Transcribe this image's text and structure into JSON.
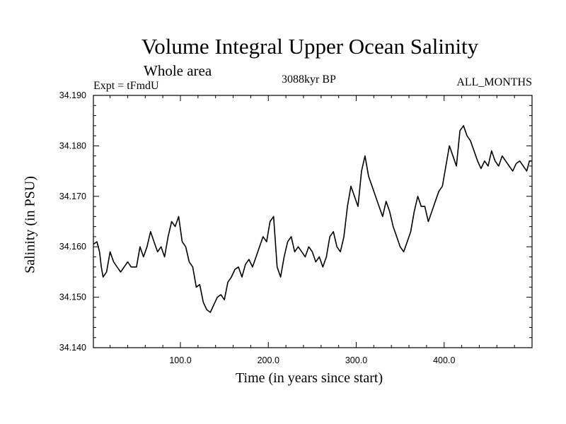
{
  "chart_data": {
    "type": "line",
    "title": "Volume Integral Upper Ocean Salinity",
    "subtitle": "Whole area",
    "left_note": "Expt = tFmdU",
    "center_note": "3088kyr BP",
    "right_note": "ALL_MONTHS",
    "xlabel": "Time (in years since start)",
    "ylabel": "Salinity (in PSU)",
    "xlim": [
      1,
      500
    ],
    "ylim": [
      34.14,
      34.19
    ],
    "x_ticks": [
      {
        "value": 100,
        "label": "100.0"
      },
      {
        "value": 200,
        "label": "200.0"
      },
      {
        "value": 300,
        "label": "300.0"
      },
      {
        "value": 400,
        "label": "400.0"
      }
    ],
    "y_ticks": [
      {
        "value": 34.14,
        "label": "34.140"
      },
      {
        "value": 34.15,
        "label": "34.150"
      },
      {
        "value": 34.16,
        "label": "34.160"
      },
      {
        "value": 34.17,
        "label": "34.170"
      },
      {
        "value": 34.18,
        "label": "34.180"
      },
      {
        "value": 34.19,
        "label": "34.190"
      }
    ],
    "series": [
      {
        "name": "salinity",
        "x": [
          1,
          5,
          8,
          10,
          12,
          16,
          20,
          24,
          28,
          32,
          36,
          40,
          44,
          50,
          54,
          58,
          62,
          66,
          70,
          74,
          78,
          82,
          86,
          90,
          94,
          98,
          102,
          106,
          110,
          114,
          118,
          122,
          126,
          130,
          134,
          138,
          142,
          146,
          150,
          154,
          158,
          162,
          166,
          170,
          174,
          178,
          182,
          186,
          190,
          194,
          198,
          202,
          206,
          210,
          214,
          218,
          222,
          226,
          230,
          234,
          238,
          242,
          246,
          250,
          254,
          258,
          262,
          266,
          270,
          274,
          278,
          282,
          286,
          290,
          294,
          298,
          302,
          306,
          310,
          314,
          318,
          322,
          326,
          330,
          334,
          338,
          342,
          346,
          350,
          354,
          358,
          362,
          366,
          370,
          374,
          378,
          382,
          386,
          390,
          394,
          398,
          402,
          406,
          410,
          414,
          418,
          422,
          426,
          430,
          434,
          438,
          442,
          446,
          450,
          454,
          458,
          462,
          466,
          470,
          474,
          478,
          482,
          486,
          490,
          494,
          497,
          500
        ],
        "values": [
          34.1605,
          34.161,
          34.159,
          34.156,
          34.154,
          34.155,
          34.159,
          34.157,
          34.156,
          34.155,
          34.156,
          34.157,
          34.156,
          34.156,
          34.16,
          34.158,
          34.16,
          34.163,
          34.161,
          34.159,
          34.16,
          34.158,
          34.162,
          34.165,
          34.164,
          34.166,
          34.161,
          34.16,
          34.157,
          34.156,
          34.152,
          34.1525,
          34.149,
          34.1475,
          34.147,
          34.1485,
          34.15,
          34.1505,
          34.1495,
          34.153,
          34.154,
          34.1555,
          34.156,
          34.154,
          34.1565,
          34.1575,
          34.156,
          34.158,
          34.16,
          34.162,
          34.161,
          34.165,
          34.166,
          34.156,
          34.154,
          34.158,
          34.161,
          34.162,
          34.159,
          34.16,
          34.159,
          34.158,
          34.16,
          34.159,
          34.157,
          34.158,
          34.156,
          34.158,
          34.162,
          34.163,
          34.16,
          34.159,
          34.162,
          34.168,
          34.172,
          34.17,
          34.168,
          34.175,
          34.178,
          34.174,
          34.172,
          34.17,
          34.168,
          34.166,
          34.169,
          34.167,
          34.164,
          34.162,
          34.16,
          34.159,
          34.161,
          34.163,
          34.167,
          34.17,
          34.168,
          34.168,
          34.165,
          34.167,
          34.169,
          34.171,
          34.172,
          34.176,
          34.18,
          34.178,
          34.176,
          34.183,
          34.184,
          34.182,
          34.181,
          34.179,
          34.177,
          34.1755,
          34.177,
          34.176,
          34.179,
          34.177,
          34.176,
          34.178,
          34.177,
          34.176,
          34.175,
          34.1765,
          34.177,
          34.176,
          34.175,
          34.177,
          34.177
        ]
      }
    ]
  }
}
